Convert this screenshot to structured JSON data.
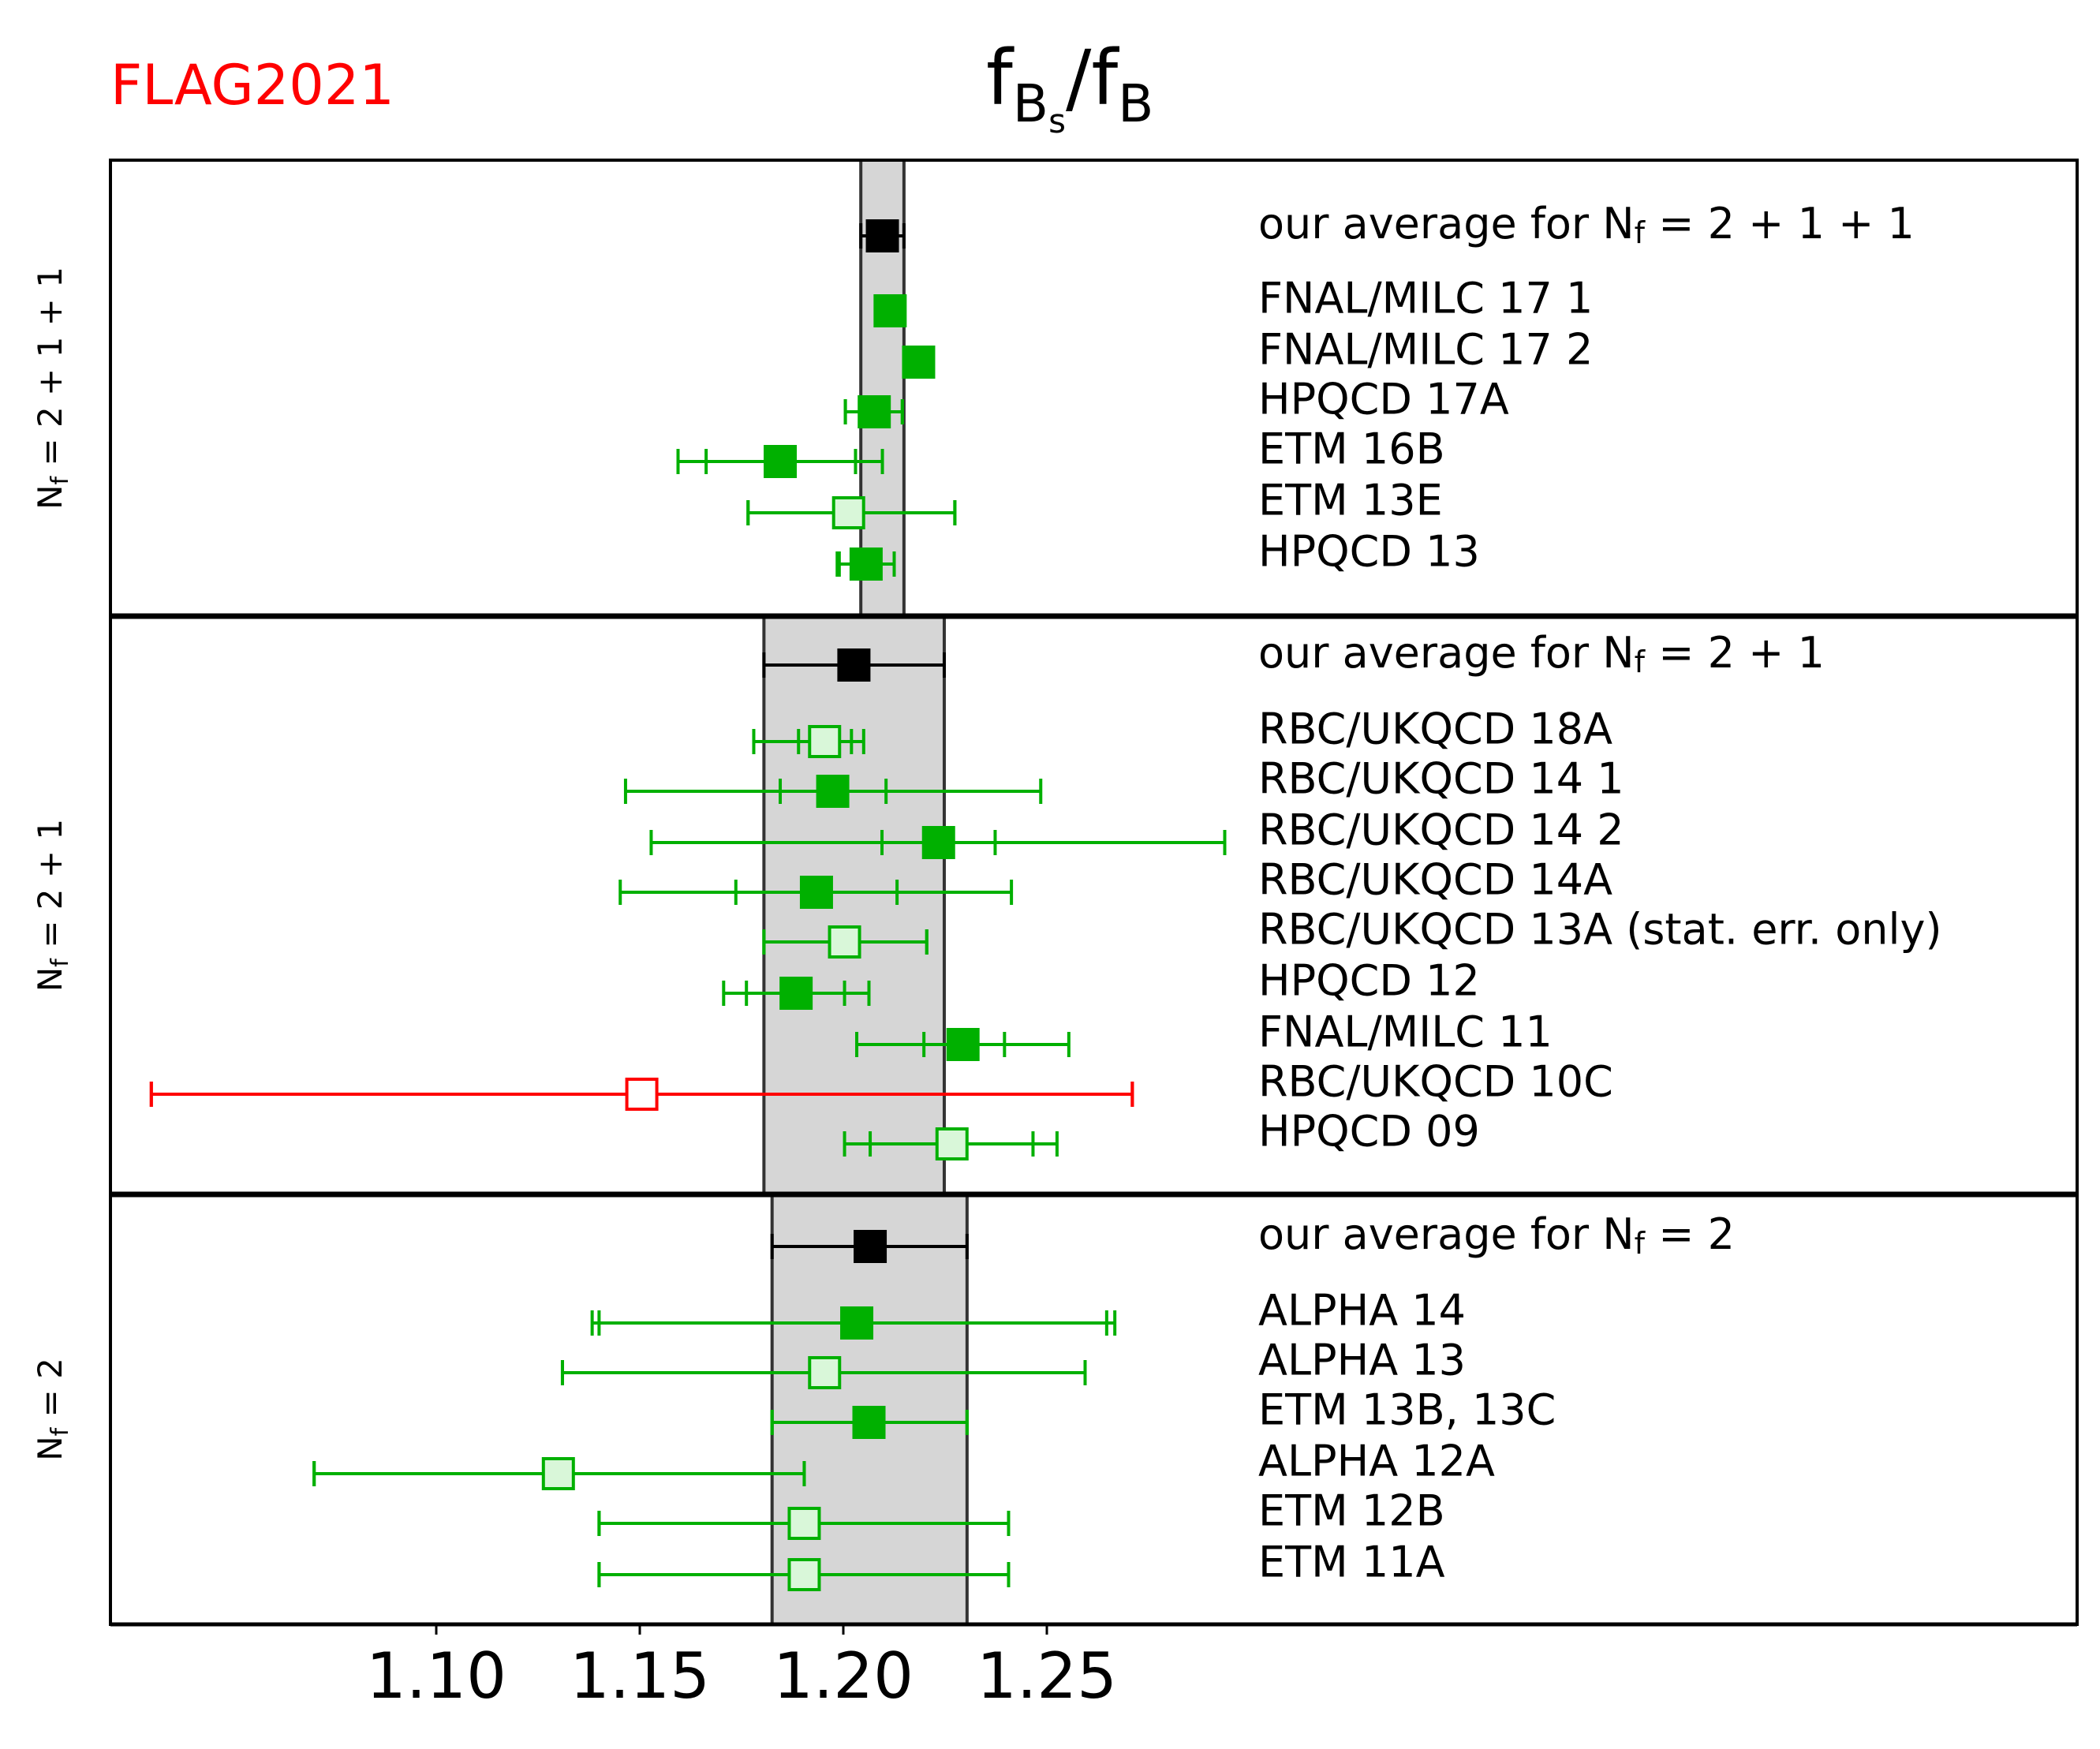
{
  "logo": {
    "text": "FLAG2021",
    "color": "#ff0000"
  },
  "chart_data": {
    "type": "scatter",
    "title": "f_Bs/f_B",
    "title_parts": {
      "main": "f",
      "sub1": "B",
      "subsub": "s",
      "slash": "/f",
      "sub2": "B"
    },
    "xlabel": "",
    "xlim": [
      1.02,
      1.503
    ],
    "xticks": [
      1.1,
      1.15,
      1.2,
      1.25
    ],
    "xtick_labels": [
      "1.10",
      "1.15",
      "1.20",
      "1.25"
    ],
    "colors": {
      "filled": "#00b000",
      "open_fill": "#d9f7d9",
      "average": "#000000",
      "band": "#d6d6d6",
      "excluded": "#ff0000"
    },
    "panels": [
      {
        "side_label": "Nf = 2+1+1",
        "side_label_parts": {
          "n": "N",
          "f": "f",
          "rest": " = 2 + 1 + 1"
        },
        "average": {
          "label_prefix": "our average for N",
          "label_sub": "f",
          "label_suffix": " = 2 + 1 + 1",
          "value": 1.2096,
          "lo": 1.2043,
          "hi": 1.2149
        },
        "points": [
          {
            "label": "FNAL/MILC 17 1",
            "value": 1.2115,
            "stat": [
              1.21,
              1.213
            ],
            "total": [
              1.21,
              1.213
            ],
            "style": "filled"
          },
          {
            "label": "FNAL/MILC 17 2",
            "value": 1.2185,
            "stat": [
              1.217,
              1.22
            ],
            "total": [
              1.217,
              1.22
            ],
            "style": "filled"
          },
          {
            "label": "HPQCD 17A",
            "value": 1.2076,
            "stat": [
              1.2005,
              1.2145
            ],
            "total": [
              1.2005,
              1.2145
            ],
            "style": "filled"
          },
          {
            "label": "ETM 16B",
            "value": 1.1845,
            "stat": [
              1.1663,
              1.203
            ],
            "total": [
              1.1594,
              1.2096
            ],
            "style": "filled"
          },
          {
            "label": "ETM 13E",
            "value": 1.2013,
            "stat": [
              1.1766,
              1.2274
            ],
            "total": [
              1.1766,
              1.2274
            ],
            "style": "open"
          },
          {
            "label": "HPQCD 13",
            "value": 1.2056,
            "stat": [
              1.199,
              1.2125
            ],
            "total": [
              1.1985,
              1.2125
            ],
            "style": "filled"
          }
        ]
      },
      {
        "side_label": "Nf = 2+1",
        "side_label_parts": {
          "n": "N",
          "f": "f",
          "rest": " = 2 + 1"
        },
        "average": {
          "label_prefix": "our average for N",
          "label_sub": "f",
          "label_suffix": " = 2 + 1",
          "value": 1.2026,
          "lo": 1.1805,
          "hi": 1.2248
        },
        "points": [
          {
            "label": "RBC/UKQCD 18A",
            "value": 1.1954,
            "stat": [
              1.189,
              1.202
            ],
            "total": [
              1.178,
              1.205
            ],
            "style": "open"
          },
          {
            "label": "RBC/UKQCD 14 1",
            "value": 1.1974,
            "stat": [
              1.1845,
              1.2105
            ],
            "total": [
              1.1465,
              1.2485
            ],
            "style": "filled"
          },
          {
            "label": "RBC/UKQCD 14 2",
            "value": 1.2234,
            "stat": [
              1.2095,
              1.2373
            ],
            "total": [
              1.1528,
              1.2937
            ],
            "style": "filled"
          },
          {
            "label": "RBC/UKQCD 14A",
            "value": 1.1934,
            "stat": [
              1.1736,
              1.2132
            ],
            "total": [
              1.1452,
              1.2413
            ],
            "style": "filled"
          },
          {
            "label": "RBC/UKQCD 13A (stat. err. only)",
            "value": 1.2003,
            "stat": [
              1.1805,
              1.2205
            ],
            "total": [
              1.1805,
              1.2205
            ],
            "style": "open"
          },
          {
            "label": "HPQCD 12",
            "value": 1.1884,
            "stat": [
              1.1762,
              1.2003
            ],
            "total": [
              1.1706,
              1.2063
            ],
            "style": "filled"
          },
          {
            "label": "FNAL/MILC 11",
            "value": 1.2294,
            "stat": [
              1.2198,
              1.2396
            ],
            "total": [
              1.2033,
              1.2554
            ],
            "style": "filled"
          },
          {
            "label": "RBC/UKQCD 10C",
            "value": 1.1505,
            "stat": [
              1.03,
              1.271
            ],
            "total": [
              1.03,
              1.271
            ],
            "style": "excluded"
          },
          {
            "label": "HPQCD 09",
            "value": 1.2267,
            "stat": [
              1.2066,
              1.2466
            ],
            "total": [
              1.2003,
              1.2525
            ],
            "style": "open"
          }
        ]
      },
      {
        "side_label": "Nf = 2",
        "side_label_parts": {
          "n": "N",
          "f": "f",
          "rest": " = 2"
        },
        "average": {
          "label_prefix": "our average for N",
          "label_sub": "f",
          "label_suffix": " = 2",
          "value": 1.2066,
          "lo": 1.1825,
          "hi": 1.2304
        },
        "points": [
          {
            "label": "ALPHA 14",
            "value": 1.2033,
            "stat": [
              1.14,
              1.2647
            ],
            "total": [
              1.1383,
              1.2667
            ],
            "style": "filled"
          },
          {
            "label": "ALPHA 13",
            "value": 1.1954,
            "stat": [
              1.131,
              1.2594
            ],
            "total": [
              1.131,
              1.2594
            ],
            "style": "open"
          },
          {
            "label": "ETM 13B, 13C",
            "value": 1.2063,
            "stat": [
              1.1825,
              1.2304
            ],
            "total": [
              1.1825,
              1.2304
            ],
            "style": "filled"
          },
          {
            "label": "ALPHA 12A",
            "value": 1.13,
            "stat": [
              1.07,
              1.1904
            ],
            "total": [
              1.07,
              1.1904
            ],
            "style": "open"
          },
          {
            "label": "ETM 12B",
            "value": 1.1904,
            "stat": [
              1.14,
              1.2406
            ],
            "total": [
              1.14,
              1.2406
            ],
            "style": "open"
          },
          {
            "label": "ETM 11A",
            "value": 1.1904,
            "stat": [
              1.14,
              1.2406
            ],
            "total": [
              1.14,
              1.2406
            ],
            "style": "open"
          }
        ]
      }
    ]
  }
}
